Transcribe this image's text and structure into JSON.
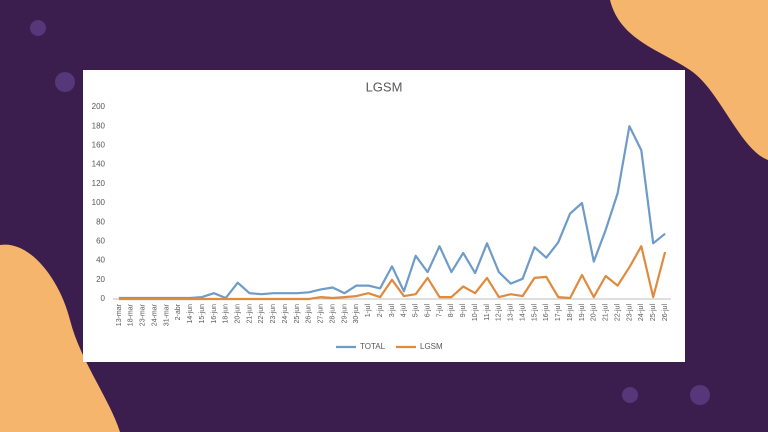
{
  "chart_data": {
    "type": "line",
    "title": "LGSM",
    "categories": [
      "13-mar",
      "18-mar",
      "23-mar",
      "24-mar",
      "31-mar",
      "2-abr",
      "14-jun",
      "15-jun",
      "16-jun",
      "18-jun",
      "20-jun",
      "21-jun",
      "22-jun",
      "23-jun",
      "24-jun",
      "25-jun",
      "26-jun",
      "27-jun",
      "28-jun",
      "29-jun",
      "30-jun",
      "1-jul",
      "2-jul",
      "3-jul",
      "4-jul",
      "5-jul",
      "6-jul",
      "7-jul",
      "8-jul",
      "9-jul",
      "10-jul",
      "11-jul",
      "12-jul",
      "13-jul",
      "14-jul",
      "15-jul",
      "16-jul",
      "17-jul",
      "18-jul",
      "19-jul",
      "20-jul",
      "21-jul",
      "22-jul",
      "23-jul",
      "24-jul",
      "25-jul",
      "26-jul"
    ],
    "series": [
      {
        "name": "TOTAL",
        "color": "#6e9bc7",
        "values": [
          1,
          1,
          1,
          1,
          1,
          1,
          1,
          2,
          6,
          1,
          17,
          6,
          5,
          6,
          6,
          6,
          7,
          10,
          12,
          6,
          14,
          14,
          11,
          34,
          8,
          45,
          28,
          55,
          28,
          48,
          27,
          58,
          28,
          16,
          21,
          54,
          43,
          59,
          89,
          100,
          39,
          72,
          110,
          180,
          155,
          58,
          68
        ]
      },
      {
        "name": "LGSM",
        "color": "#e08a3e",
        "values": [
          0,
          0,
          0,
          0,
          0,
          0,
          0,
          0,
          0,
          0,
          0,
          0,
          0,
          0,
          0,
          0,
          0,
          2,
          1,
          2,
          3,
          6,
          2,
          20,
          3,
          5,
          22,
          2,
          2,
          13,
          6,
          22,
          2,
          5,
          3,
          22,
          23,
          2,
          1,
          25,
          2,
          24,
          14,
          33,
          55,
          2,
          49
        ]
      }
    ],
    "ylim": [
      0,
      200
    ],
    "yticks": [
      0,
      20,
      40,
      60,
      80,
      100,
      120,
      140,
      160,
      180,
      200
    ],
    "grid": false,
    "legend": "bottom"
  }
}
